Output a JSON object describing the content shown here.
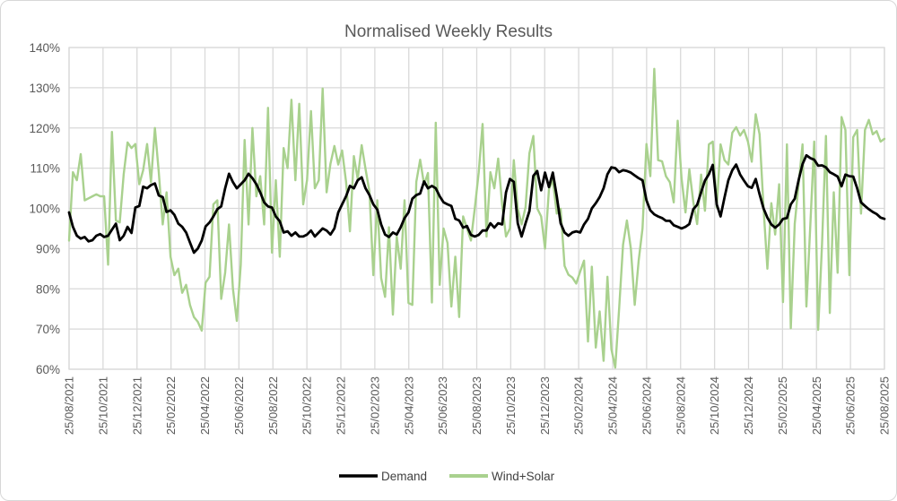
{
  "chart_data": {
    "type": "line",
    "title": "Normalised Weekly Results",
    "xlabel": "",
    "ylabel": "",
    "ylim": [
      60,
      140
    ],
    "y_step": 10,
    "y_tick_labels": [
      "60%",
      "70%",
      "80%",
      "90%",
      "100%",
      "110%",
      "120%",
      "130%",
      "140%"
    ],
    "grid": true,
    "legend_position": "bottom",
    "x_unit": "weekly",
    "x_tick_labels": [
      "25/08/2021",
      "25/10/2021",
      "25/12/2021",
      "25/02/2022",
      "25/04/2022",
      "25/06/2022",
      "25/08/2022",
      "25/10/2022",
      "25/12/2022",
      "25/02/2023",
      "25/04/2023",
      "25/06/2023",
      "25/08/2023",
      "25/10/2023",
      "25/12/2023",
      "25/02/2024",
      "25/04/2024",
      "25/06/2024",
      "25/08/2024",
      "25/10/2024",
      "25/12/2024",
      "25/02/2025",
      "25/04/2025",
      "25/06/2025",
      "25/08/2025"
    ],
    "legend": [
      {
        "label": "Demand",
        "color": "#000000"
      },
      {
        "label": "Wind+Solar",
        "color": "#a9d18e"
      }
    ],
    "series": [
      {
        "name": "Demand",
        "color": "#000000",
        "stroke_width": 2.8,
        "values": [
          99,
          95.4,
          93.2,
          92.5,
          92.9,
          91.8,
          92.1,
          93.2,
          93.6,
          92.9,
          93.2,
          94.7,
          96.2,
          92.1,
          93.2,
          95.4,
          93.9,
          100.2,
          100.6,
          105.4,
          105,
          105.8,
          106.2,
          103.2,
          102.8,
          99.1,
          99.5,
          98.4,
          96.2,
          95.4,
          94,
          91.5,
          89,
          90,
          92,
          95.5,
          96.5,
          98,
          99.8,
          100.5,
          105,
          108.6,
          106.5,
          105,
          106,
          107,
          108.6,
          107.5,
          106,
          104,
          101.5,
          100.5,
          100.2,
          98,
          96.8,
          94,
          94.3,
          93.2,
          94,
          93,
          93,
          93.5,
          94.5,
          93,
          94,
          95,
          94.5,
          93.5,
          95,
          99,
          101,
          103,
          105.6,
          105,
          107,
          107.7,
          105,
          103.3,
          101,
          99.7,
          96,
          93.5,
          92.9,
          94,
          93.5,
          95.3,
          97.6,
          99,
          102.4,
          103.3,
          103.7,
          106.7,
          105,
          105.6,
          105,
          103,
          101.5,
          101,
          100.6,
          97.4,
          97,
          95.2,
          95.6,
          93.4,
          93,
          93.4,
          94.5,
          94.5,
          96.3,
          95.2,
          96.3,
          96,
          104,
          107.3,
          106.6,
          96.3,
          93,
          96.3,
          99.3,
          108.1,
          109.3,
          104.5,
          108.9,
          105.3,
          108.9,
          103,
          96.3,
          94,
          93.2,
          94,
          94.3,
          94,
          96,
          97.4,
          100,
          101.3,
          102.8,
          105,
          108.5,
          110.2,
          110,
          109,
          109.5,
          109.3,
          108.9,
          108.2,
          107.5,
          107,
          102,
          99.5,
          98.5,
          98,
          97.6,
          96.9,
          96.9,
          95.8,
          95.4,
          95,
          95.4,
          96.1,
          99.8,
          100.9,
          104,
          106.9,
          108.5,
          110.8,
          101,
          98,
          102.7,
          107,
          109.5,
          110.9,
          108.4,
          106.9,
          105.5,
          105.1,
          107.3,
          103.5,
          100,
          97.7,
          96,
          95.2,
          96,
          97.4,
          97.6,
          101,
          102.4,
          107,
          111,
          113.2,
          112.5,
          112.1,
          110.6,
          110.7,
          110.2,
          109,
          108.5,
          107.9,
          105.5,
          108.4,
          108,
          107.9,
          105,
          101.5,
          100.6,
          99.8,
          99.1,
          98.6,
          97.7,
          97.4
        ]
      },
      {
        "name": "Wind+Solar",
        "color": "#a9d18e",
        "stroke_width": 2.4,
        "values": [
          92,
          109,
          107,
          113.5,
          102,
          102.5,
          103,
          103.5,
          103,
          103,
          86,
          119,
          97,
          96.5,
          108.5,
          116.4,
          115,
          116,
          106,
          109.5,
          116,
          106.5,
          120,
          109,
          96,
          104,
          88,
          83.4,
          85,
          79,
          81,
          76,
          73,
          71.8,
          69.6,
          81.5,
          83,
          101,
          102,
          77.5,
          84,
          96,
          80,
          72,
          86,
          117,
          96,
          120,
          103,
          108,
          96,
          125,
          89,
          107,
          88,
          115,
          110,
          127,
          107,
          126,
          101,
          107,
          124.2,
          105,
          107,
          129.8,
          104,
          111.1,
          115.5,
          110.9,
          114.4,
          106.6,
          94.3,
          113,
          107.3,
          115.7,
          109.8,
          104.1,
          83.4,
          102,
          82.7,
          78,
          95.3,
          73.6,
          93,
          85,
          102,
          76.5,
          76,
          106.6,
          112.1,
          105.9,
          108.8,
          76.6,
          121.3,
          81,
          95,
          91.4,
          75.6,
          88,
          73,
          98,
          95,
          92,
          100,
          109,
          121,
          93,
          109,
          105,
          112.4,
          101,
          93,
          95,
          112,
          100,
          96,
          100.3,
          113.7,
          118,
          100,
          98,
          90,
          104.8,
          107,
          98.7,
          99.9,
          85.7,
          83.5,
          82.8,
          81.3,
          84.3,
          87,
          66.9,
          85.5,
          65.4,
          74.4,
          62.1,
          83,
          65,
          60.4,
          75,
          91,
          97,
          90,
          76,
          87,
          95,
          116,
          108,
          134.7,
          112,
          111.7,
          108,
          106.5,
          101.5,
          121.8,
          107.5,
          99,
          109.7,
          101.6,
          96.1,
          108.4,
          99.4,
          115.9,
          116.6,
          100.2,
          115.9,
          112,
          110.9,
          118.8,
          120.2,
          118.1,
          119.5,
          116.6,
          111.6,
          123.4,
          118.4,
          100.2,
          85,
          101.3,
          93.5,
          106,
          76.7,
          115.9,
          70.2,
          96.2,
          106,
          115.9,
          75.6,
          96,
          116.6,
          69.8,
          91,
          118,
          74,
          104,
          84,
          122.7,
          119.5,
          83.4,
          117.7,
          119.5,
          98.7,
          119.5,
          122,
          118.4,
          119.2,
          116.6,
          117.3
        ]
      }
    ],
    "style": {
      "grid_color": "#d9d9d9",
      "plot_border_color": "#d9d9d9",
      "tick_label_color": "#595959",
      "title_color": "#595959"
    }
  }
}
